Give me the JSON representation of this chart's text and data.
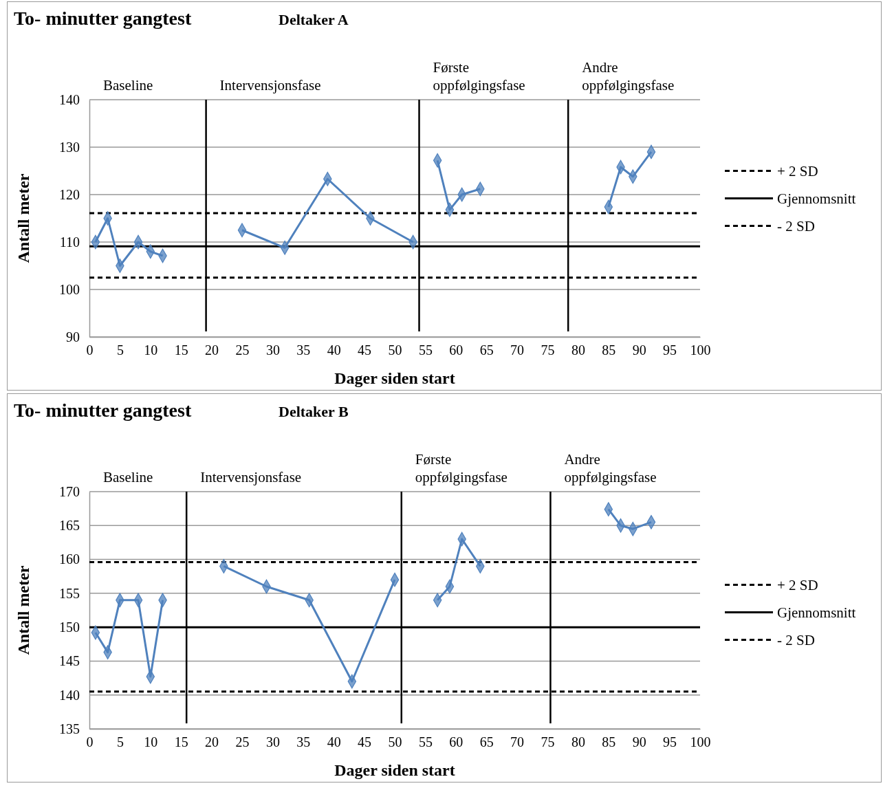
{
  "chart_data": [
    {
      "type": "line",
      "title": "To- minutter gangtest",
      "subtitle": "Deltaker A",
      "xlabel": "Dager siden start",
      "ylabel": "Antall meter",
      "series": [
        {
          "color": "#4f81bd",
          "x": [
            1,
            3,
            5,
            8,
            10,
            12
          ],
          "values": [
            110,
            115,
            105,
            110,
            108,
            107.1
          ]
        },
        {
          "color": "#4f81bd",
          "x": [
            25,
            32,
            39,
            46,
            53
          ],
          "values": [
            112.5,
            108.8,
            123.3,
            115,
            110
          ]
        },
        {
          "color": "#4f81bd",
          "x": [
            57,
            59,
            61,
            64
          ],
          "values": [
            127.2,
            116.8,
            120,
            121.2
          ]
        },
        {
          "color": "#4f81bd",
          "x": [
            85,
            87,
            89,
            92
          ],
          "values": [
            117.4,
            125.8,
            123.8,
            129
          ]
        }
      ],
      "xlim": [
        0,
        100
      ],
      "xticks": [
        0,
        5,
        10,
        15,
        20,
        25,
        30,
        35,
        40,
        45,
        50,
        55,
        60,
        65,
        70,
        75,
        80,
        85,
        90,
        95,
        100
      ],
      "ylim": [
        90,
        140
      ],
      "yticks": [
        90,
        100,
        110,
        120,
        130,
        140
      ],
      "grid": "y",
      "marker": "diamond",
      "legend": "right",
      "ref_lines": [
        {
          "axis": "y",
          "value": 116.1,
          "label": "+ 2 SD",
          "line_style": "dashed",
          "color": "#000000"
        },
        {
          "axis": "y",
          "value": 109.1,
          "label": "Gjennomsnitt",
          "line_style": "solid",
          "color": "#000000"
        },
        {
          "axis": "y",
          "value": 102.5,
          "label": "- 2 SD",
          "line_style": "dashed",
          "color": "#000000"
        },
        {
          "axis": "x",
          "value": 19.1,
          "line_style": "solid",
          "color": "#000000"
        },
        {
          "axis": "x",
          "value": 54,
          "line_style": "solid",
          "color": "#000000"
        },
        {
          "axis": "x",
          "value": 78.4,
          "line_style": "solid",
          "color": "#000000"
        }
      ],
      "annotations": [
        "Baseline",
        "Intervensjonsfase",
        "Første oppfølgingsfase",
        "Andre oppfølgingsfase"
      ]
    },
    {
      "type": "line",
      "title": "To- minutter gangtest",
      "subtitle": "Deltaker B",
      "xlabel": "Dager siden start",
      "ylabel": "Antall meter",
      "series": [
        {
          "color": "#4f81bd",
          "x": [
            1,
            3,
            5,
            8,
            10,
            12
          ],
          "values": [
            149.2,
            146.3,
            154,
            154,
            142.7,
            154
          ]
        },
        {
          "color": "#4f81bd",
          "x": [
            22,
            29,
            36,
            43,
            50
          ],
          "values": [
            159,
            156,
            154,
            142,
            157
          ]
        },
        {
          "color": "#4f81bd",
          "x": [
            57,
            59,
            61,
            64
          ],
          "values": [
            154,
            156,
            163,
            159
          ]
        },
        {
          "color": "#4f81bd",
          "x": [
            85,
            87,
            89,
            92
          ],
          "values": [
            167.4,
            165,
            164.5,
            165.5
          ]
        }
      ],
      "xlim": [
        0,
        100
      ],
      "xticks": [
        0,
        5,
        10,
        15,
        20,
        25,
        30,
        35,
        40,
        45,
        50,
        55,
        60,
        65,
        70,
        75,
        80,
        85,
        90,
        95,
        100
      ],
      "ylim": [
        135,
        170
      ],
      "yticks": [
        135,
        140,
        145,
        150,
        155,
        160,
        165,
        170
      ],
      "grid": "y",
      "marker": "diamond",
      "legend": "right",
      "ref_lines": [
        {
          "axis": "y",
          "value": 159.6,
          "label": "+ 2 SD",
          "line_style": "dashed",
          "color": "#000000"
        },
        {
          "axis": "y",
          "value": 150,
          "label": "Gjennomsnitt",
          "line_style": "solid",
          "color": "#000000"
        },
        {
          "axis": "y",
          "value": 140.5,
          "label": "- 2 SD",
          "line_style": "dashed",
          "color": "#000000"
        },
        {
          "axis": "x",
          "value": 15.9,
          "line_style": "solid",
          "color": "#000000"
        },
        {
          "axis": "x",
          "value": 51.1,
          "line_style": "solid",
          "color": "#000000"
        },
        {
          "axis": "x",
          "value": 75.5,
          "line_style": "solid",
          "color": "#000000"
        }
      ],
      "annotations": [
        "Baseline",
        "Intervensjonsfase",
        "Første oppfølgingsfase",
        "Andre oppfølgingsfase"
      ]
    }
  ]
}
